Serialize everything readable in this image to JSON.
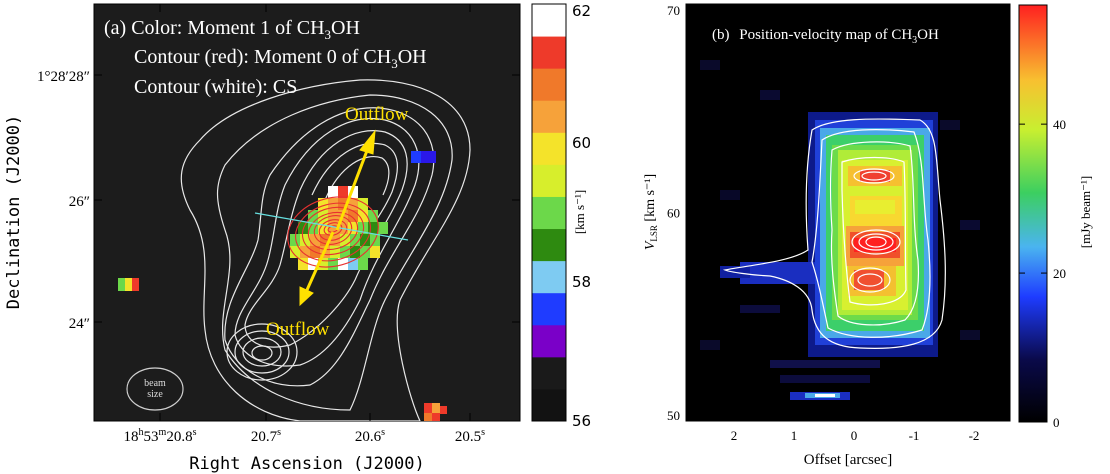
{
  "panel_a": {
    "label": "(a)",
    "legend_lines": [
      {
        "prefix": "Color: Moment 1 of CH",
        "sub": "3",
        "suffix": "OH"
      },
      {
        "prefix": "Contour (red): Moment 0 of CH",
        "sub": "3",
        "suffix": "OH"
      },
      {
        "prefix": "Contour (white): CS",
        "sub": "",
        "suffix": ""
      }
    ],
    "annotations": {
      "outflow_north": "Outflow",
      "outflow_south": "Outflow",
      "beam": [
        "beam",
        "size"
      ]
    },
    "ylabel": "Declination (J2000)",
    "xlabel": "Right Ascension (J2000)",
    "yticks": [
      {
        "text": "1°28′28″"
      },
      {
        "text": "26″"
      },
      {
        "text": "24″"
      }
    ],
    "xticks": [
      {
        "base": "18",
        "parts": [
          [
            "h",
            "53"
          ],
          [
            "m",
            "20.8"
          ],
          [
            "s",
            ""
          ]
        ]
      },
      {
        "base": "20.7",
        "parts": [
          [
            "s",
            ""
          ]
        ]
      },
      {
        "base": "20.6",
        "parts": [
          [
            "s",
            ""
          ]
        ]
      },
      {
        "base": "20.5",
        "parts": [
          [
            "s",
            ""
          ]
        ]
      }
    ],
    "colorbar": {
      "label": "[km s⁻¹]",
      "min": 56,
      "max": 62,
      "ticks": [
        56,
        58,
        60,
        62
      ],
      "colors": [
        "#121212",
        "#1a1a1a",
        "#7a00c8",
        "#1f3cff",
        "#7ecbf2",
        "#2e8a10",
        "#6cd84a",
        "#d7ee2c",
        "#f4e32a",
        "#f6a23a",
        "#f0792a",
        "#ee3a2a",
        "#ffffff"
      ]
    }
  },
  "panel_b": {
    "label": "(b)",
    "title_prefix": "Position-velocity map of CH",
    "title_sub": "3",
    "title_suffix": "OH",
    "xlabel": "Offset [arcsec]",
    "ylabel_main": "V",
    "ylabel_sub": "LSR",
    "ylabel_unit": " [km s⁻¹]",
    "colorbar_label": "[mJy beam⁻¹]"
  },
  "chart_data": [
    {
      "type": "heatmap",
      "name_in_figure": "(a)",
      "description_text": "Color: Moment 1 of CH3OH; Contour (red): Moment 0 of CH3OH; Contour (white): CS",
      "colorbar_range": [
        56,
        62
      ],
      "colorbar_ticks": [
        56,
        58,
        60,
        62
      ],
      "colorbar_unit": "[km s⁻¹]"
    },
    {
      "type": "heatmap",
      "name_in_figure": "(b)",
      "title": "Position-velocity map of CH3OH",
      "xlabel": "Offset [arcsec]",
      "ylabel": "VLSR [km s⁻¹]",
      "xlim": [
        2.8,
        -2.6
      ],
      "ylim": [
        49.7,
        70.3
      ],
      "xticks": [
        2,
        1,
        0,
        -1,
        -2
      ],
      "yticks": [
        50,
        60,
        70
      ],
      "colorbar_range": [
        0,
        56
      ],
      "colorbar_ticks": [
        0,
        20,
        40
      ],
      "colorbar_unit": "[mJy beam⁻¹]"
    }
  ]
}
